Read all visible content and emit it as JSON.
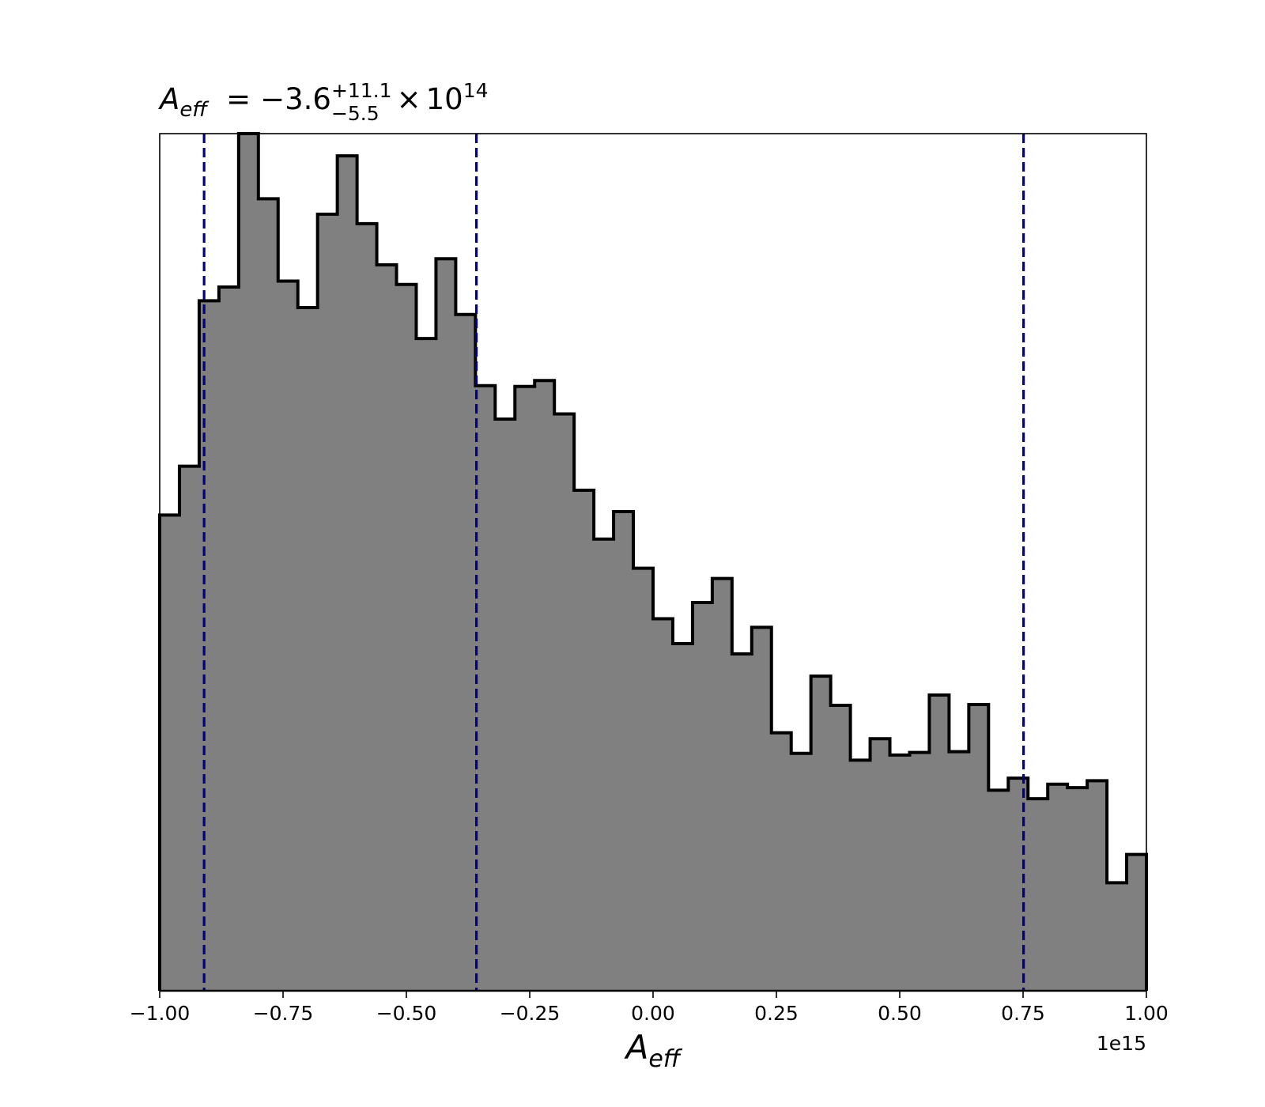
{
  "chart_data": {
    "type": "histogram",
    "title": {
      "symbol_main": "A",
      "symbol_sub": "eff",
      "equals": "=",
      "value": "−3.6",
      "upper": "+11.1",
      "lower": "−5.5",
      "times": "×",
      "base": "10",
      "exponent": "14"
    },
    "xlabel": {
      "main": "A",
      "sub": "eff"
    },
    "ylabel": "",
    "x_offset_label": "1e15",
    "xlim": [
      -1.0,
      1.0
    ],
    "ylim": [
      0,
      1.0
    ],
    "y_axis_visible": false,
    "grid": false,
    "x_ticks": [
      -1.0,
      -0.75,
      -0.5,
      -0.25,
      0.0,
      0.25,
      0.5,
      0.75,
      1.0
    ],
    "x_tick_labels": [
      "−1.00",
      "−0.75",
      "−0.50",
      "−0.25",
      "0.00",
      "0.25",
      "0.50",
      "0.75",
      "1.00"
    ],
    "bin_edges": [
      -1.0,
      -0.96,
      -0.92,
      -0.88,
      -0.84,
      -0.8,
      -0.76,
      -0.72,
      -0.68,
      -0.64,
      -0.6,
      -0.56,
      -0.52,
      -0.48,
      -0.44,
      -0.4,
      -0.36,
      -0.32,
      -0.28,
      -0.24,
      -0.2,
      -0.16,
      -0.12,
      -0.08,
      -0.04,
      0.0,
      0.04,
      0.08,
      0.12,
      0.16,
      0.2,
      0.24,
      0.28,
      0.32,
      0.36,
      0.4,
      0.44,
      0.48,
      0.52,
      0.56,
      0.6,
      0.64,
      0.68,
      0.72,
      0.76,
      0.8,
      0.84,
      0.88,
      0.92,
      0.96,
      1.0
    ],
    "counts": [
      0.555,
      0.612,
      0.805,
      0.821,
      1.0,
      0.924,
      0.828,
      0.797,
      0.906,
      0.974,
      0.895,
      0.847,
      0.824,
      0.761,
      0.854,
      0.789,
      0.706,
      0.667,
      0.705,
      0.712,
      0.673,
      0.584,
      0.527,
      0.559,
      0.493,
      0.434,
      0.405,
      0.453,
      0.481,
      0.393,
      0.424,
      0.301,
      0.277,
      0.367,
      0.333,
      0.269,
      0.294,
      0.275,
      0.278,
      0.345,
      0.279,
      0.334,
      0.234,
      0.248,
      0.224,
      0.241,
      0.237,
      0.245,
      0.126,
      0.159
    ],
    "fill_color": "#808080",
    "edge_color": "#000000",
    "vlines": [
      -0.91,
      -0.358,
      0.751
    ],
    "vline_color": "#000080",
    "vline_style": "dashed"
  }
}
